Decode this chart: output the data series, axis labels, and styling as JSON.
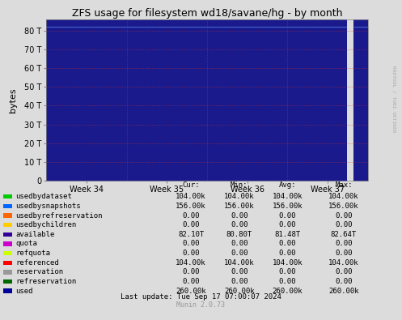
{
  "title": "ZFS usage for filesystem wd18/savane/hg - by month",
  "ylabel": "bytes",
  "xtick_labels": [
    "Week 34",
    "Week 35",
    "Week 36",
    "Week 37"
  ],
  "ytick_labels": [
    "0",
    "10 T",
    "20 T",
    "30 T",
    "40 T",
    "50 T",
    "60 T",
    "70 T",
    "80 T"
  ],
  "ytick_values": [
    0,
    10,
    20,
    30,
    40,
    50,
    60,
    70,
    80
  ],
  "ymax": 86,
  "bg_color": "#DCDCDC",
  "plot_bg_color": "#1a1a8c",
  "grid_color_h": "#cc3333",
  "available_color": "#1a1a8c",
  "legend_items": [
    {
      "label": "usedbydataset",
      "color": "#00cc00"
    },
    {
      "label": "usedbysnapshots",
      "color": "#0066ff"
    },
    {
      "label": "usedbyrefreservation",
      "color": "#ff6600"
    },
    {
      "label": "usedbychildren",
      "color": "#ffcc00"
    },
    {
      "label": "available",
      "color": "#330099"
    },
    {
      "label": "quota",
      "color": "#cc00cc"
    },
    {
      "label": "refquota",
      "color": "#ccff00"
    },
    {
      "label": "referenced",
      "color": "#ff0000"
    },
    {
      "label": "reservation",
      "color": "#999999"
    },
    {
      "label": "refreservation",
      "color": "#006600"
    },
    {
      "label": "used",
      "color": "#000099"
    }
  ],
  "table_header": [
    "",
    "Cur:",
    "Min:",
    "Avg:",
    "Max:"
  ],
  "table_rows": [
    [
      "usedbydataset",
      "104.00k",
      "104.00k",
      "104.00k",
      "104.00k"
    ],
    [
      "usedbysnapshots",
      "156.00k",
      "156.00k",
      "156.00k",
      "156.00k"
    ],
    [
      "usedbyrefreservation",
      "0.00",
      "0.00",
      "0.00",
      "0.00"
    ],
    [
      "usedbychildren",
      "0.00",
      "0.00",
      "0.00",
      "0.00"
    ],
    [
      "available",
      "82.10T",
      "80.80T",
      "81.48T",
      "82.64T"
    ],
    [
      "quota",
      "0.00",
      "0.00",
      "0.00",
      "0.00"
    ],
    [
      "refquota",
      "0.00",
      "0.00",
      "0.00",
      "0.00"
    ],
    [
      "referenced",
      "104.00k",
      "104.00k",
      "104.00k",
      "104.00k"
    ],
    [
      "reservation",
      "0.00",
      "0.00",
      "0.00",
      "0.00"
    ],
    [
      "refreservation",
      "0.00",
      "0.00",
      "0.00",
      "0.00"
    ],
    [
      "used",
      "260.00k",
      "260.00k",
      "260.00k",
      "260.00k"
    ]
  ],
  "last_update": "Last update: Tue Sep 17 07:00:07 2024",
  "munin_version": "Munin 2.0.73",
  "rrdtool_label": "RRDTOOL / TOBI OETIKER"
}
